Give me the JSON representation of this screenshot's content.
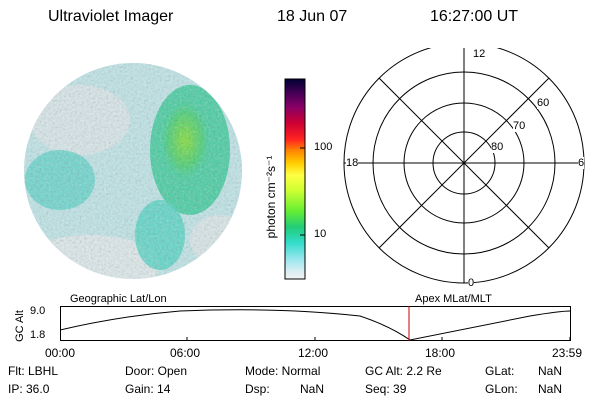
{
  "header": {
    "instrument": "Ultraviolet Imager",
    "date": "18 Jun 07",
    "time": "16:27:00 UT"
  },
  "colorbar": {
    "label": "photon cm⁻²s⁻¹",
    "tick_100": "100",
    "tick_10": "10",
    "colors": [
      "#000033",
      "#440055",
      "#880066",
      "#cc0033",
      "#ff2222",
      "#ff8800",
      "#ffcc00",
      "#ffff44",
      "#ccff33",
      "#66ee33",
      "#22cc77",
      "#33ddcc",
      "#99e6ee",
      "#d8eef2",
      "#f2f2f2"
    ]
  },
  "polar": {
    "label_top": "12",
    "label_left": "18",
    "label_right": "6",
    "label_bottom": "0",
    "ring_60": "60",
    "ring_70": "70",
    "ring_80": "80"
  },
  "orbit": {
    "left_caption": "Geographic Lat/Lon",
    "right_caption": "Apex MLat/MLT",
    "y_axis_label": "GC Alt",
    "y_top": "9.0",
    "y_bottom": "1.8",
    "times": [
      "00:00",
      "06:00",
      "12:00",
      "18:00",
      "23:59"
    ],
    "marker_color": "#cc0000"
  },
  "info": {
    "flt": "Flt: LBHL",
    "ip": "IP: 36.0",
    "door": "Door: Open",
    "gain": "Gain: 14",
    "mode": "Mode: Normal",
    "dsp_label": "Dsp:",
    "dsp_value": "NaN",
    "gc_alt": "GC Alt: 2.2 Re",
    "seq": "Seq: 39",
    "glat_label": "GLat:",
    "glat_value": "NaN",
    "glon_label": "GLon:",
    "glon_value": "NaN"
  }
}
